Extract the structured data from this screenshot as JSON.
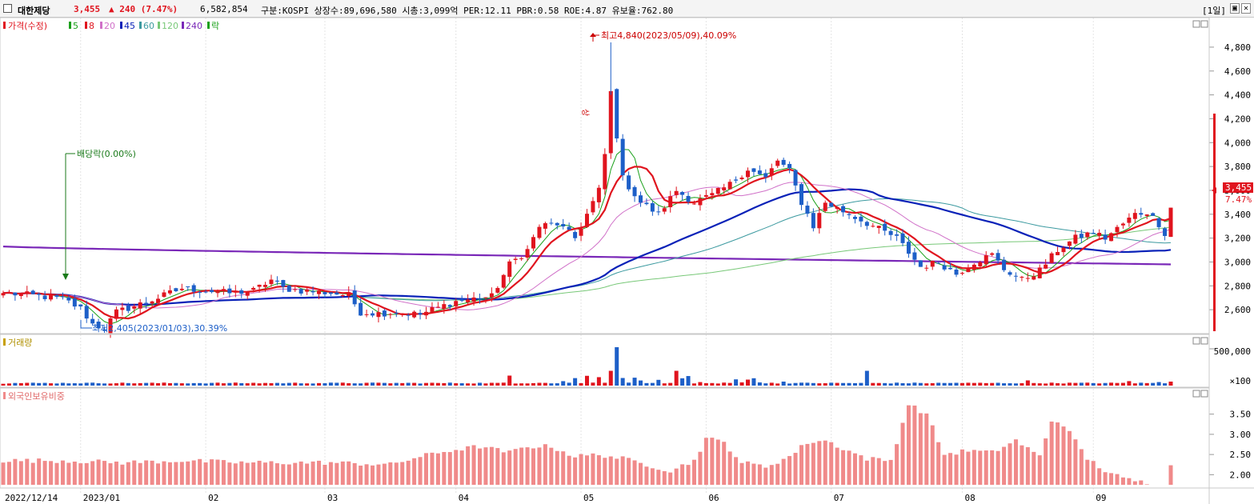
{
  "header": {
    "stock_name": "대한제당",
    "price": "3,455",
    "change": "▲ 240 (7.47%)",
    "volume": "6,582,854",
    "info": "구분:KOSPI 상장수:89,696,580 시총:3,099억 PER:12.11 PBR:0.58 ROE:4.87 유보율:762.80",
    "period_button": "[1일]"
  },
  "colors": {
    "up": "#e0141e",
    "down": "#1d5fc8",
    "ma5": "#1aa01a",
    "ma8": "#e0141e",
    "ma20": "#d070c8",
    "ma45": "#0a22b8",
    "ma60": "#3c9aa0",
    "ma120": "#78c878",
    "ma240": "#7a28b8",
    "foreign": "#f08a8a"
  },
  "price_panel": {
    "legend": [
      "가격(수정)",
      "5",
      "8",
      "20",
      "45",
      "60",
      "120",
      "240",
      "락"
    ],
    "high_annotation": "최고4,840(2023/05/09),40.09%",
    "low_annotation": "최저2,405(2023/01/03),30.39%",
    "dividend_annotation": "배당락(0.00%)",
    "upper_limit_marker": "상",
    "current_price_tag": "3,455",
    "current_change_tag": "7.47%",
    "y_ticks": [
      "4,800",
      "4,600",
      "4,400",
      "4,200",
      "4,000",
      "3,800",
      "3,600",
      "3,400",
      "3,200",
      "3,000",
      "2,800",
      "2,600"
    ]
  },
  "volume_panel": {
    "legend": "거래량",
    "y_ticks": [
      "500,000",
      "×100"
    ]
  },
  "foreign_panel": {
    "legend": "외국인보유비중",
    "y_ticks": [
      "3.50",
      "3.00",
      "2.50",
      "2.00"
    ]
  },
  "x_axis": {
    "labels": [
      "2022/12/14",
      "2023/01",
      "02",
      "03",
      "04",
      "05",
      "06",
      "07",
      "08",
      "09"
    ]
  },
  "chart_data": {
    "type": "candlestick",
    "anchors": [
      [
        0,
        2740
      ],
      [
        5,
        2720
      ],
      [
        10,
        2690
      ],
      [
        13,
        2610
      ],
      [
        15,
        2480
      ],
      [
        17,
        2440
      ],
      [
        19,
        2580
      ],
      [
        22,
        2630
      ],
      [
        26,
        2700
      ],
      [
        30,
        2780
      ],
      [
        34,
        2760
      ],
      [
        38,
        2740
      ],
      [
        42,
        2760
      ],
      [
        45,
        2850
      ],
      [
        47,
        2780
      ],
      [
        50,
        2760
      ],
      [
        55,
        2740
      ],
      [
        58,
        2720
      ],
      [
        60,
        2580
      ],
      [
        63,
        2570
      ],
      [
        66,
        2580
      ],
      [
        70,
        2560
      ],
      [
        72,
        2600
      ],
      [
        76,
        2670
      ],
      [
        80,
        2700
      ],
      [
        82,
        2710
      ],
      [
        85,
        2980
      ],
      [
        88,
        3100
      ],
      [
        90,
        3300
      ],
      [
        93,
        3320
      ],
      [
        96,
        3200
      ],
      [
        100,
        3600
      ],
      [
        101,
        3900
      ],
      [
        102,
        4420
      ],
      [
        104,
        3700
      ],
      [
        107,
        3500
      ],
      [
        110,
        3400
      ],
      [
        113,
        3600
      ],
      [
        116,
        3500
      ],
      [
        119,
        3560
      ],
      [
        122,
        3650
      ],
      [
        125,
        3780
      ],
      [
        128,
        3700
      ],
      [
        130,
        3850
      ],
      [
        132,
        3760
      ],
      [
        134,
        3500
      ],
      [
        136,
        3300
      ],
      [
        138,
        3500
      ],
      [
        142,
        3400
      ],
      [
        146,
        3300
      ],
      [
        150,
        3200
      ],
      [
        154,
        2960
      ],
      [
        157,
        3000
      ],
      [
        160,
        2900
      ],
      [
        163,
        3000
      ],
      [
        166,
        3060
      ],
      [
        168,
        2940
      ],
      [
        171,
        2850
      ],
      [
        174,
        2930
      ],
      [
        177,
        3100
      ],
      [
        180,
        3200
      ],
      [
        183,
        3250
      ],
      [
        185,
        3200
      ],
      [
        187,
        3280
      ],
      [
        190,
        3400
      ],
      [
        192,
        3420
      ],
      [
        194,
        3320
      ],
      [
        195,
        3240
      ],
      [
        196,
        3455
      ]
    ],
    "volume_index": [
      [
        0,
        1
      ],
      [
        85,
        35
      ],
      [
        100,
        32
      ],
      [
        102,
        55
      ],
      [
        103,
        160
      ],
      [
        104,
        25
      ],
      [
        110,
        20
      ],
      [
        113,
        55
      ],
      [
        117,
        8
      ],
      [
        124,
        38
      ],
      [
        131,
        10
      ],
      [
        145,
        55
      ],
      [
        160,
        5
      ],
      [
        172,
        15
      ],
      [
        189,
        12
      ],
      [
        194,
        8
      ],
      [
        196,
        10
      ]
    ],
    "foreign_ratio": [
      [
        0,
        2.35
      ],
      [
        10,
        2.35
      ],
      [
        20,
        2.3
      ],
      [
        30,
        2.35
      ],
      [
        40,
        2.3
      ],
      [
        55,
        2.3
      ],
      [
        65,
        2.25
      ],
      [
        70,
        2.45
      ],
      [
        75,
        2.6
      ],
      [
        80,
        2.7
      ],
      [
        85,
        2.55
      ],
      [
        88,
        2.7
      ],
      [
        92,
        2.7
      ],
      [
        96,
        2.45
      ],
      [
        100,
        2.5
      ],
      [
        104,
        2.4
      ],
      [
        108,
        2.25
      ],
      [
        112,
        2.1
      ],
      [
        116,
        2.35
      ],
      [
        118,
        2.9
      ],
      [
        121,
        2.8
      ],
      [
        124,
        2.3
      ],
      [
        128,
        2.2
      ],
      [
        132,
        2.45
      ],
      [
        135,
        2.8
      ],
      [
        138,
        2.85
      ],
      [
        141,
        2.65
      ],
      [
        145,
        2.4
      ],
      [
        149,
        2.35
      ],
      [
        152,
        3.75
      ],
      [
        155,
        3.5
      ],
      [
        158,
        2.5
      ],
      [
        162,
        2.6
      ],
      [
        166,
        2.55
      ],
      [
        170,
        2.85
      ],
      [
        174,
        2.45
      ],
      [
        176,
        3.35
      ],
      [
        178,
        3.25
      ],
      [
        182,
        2.4
      ],
      [
        185,
        2.1
      ],
      [
        188,
        1.9
      ],
      [
        192,
        1.8
      ],
      [
        195,
        1.75
      ],
      [
        196,
        2.2
      ]
    ],
    "ma240": {
      "start": 3130,
      "end": 2980
    },
    "x_dates": [
      "2022/12/14",
      "2023/01",
      "02",
      "03",
      "04",
      "05",
      "06",
      "07",
      "08",
      "09"
    ],
    "price_range": [
      2420,
      4900
    ]
  }
}
